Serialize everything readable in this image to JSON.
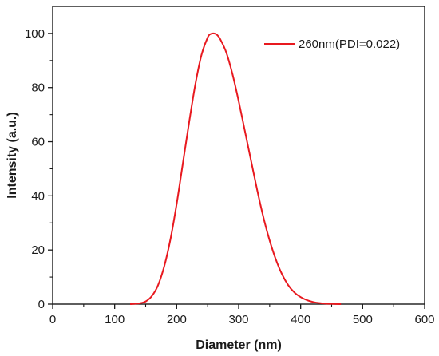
{
  "chart_data": {
    "type": "line",
    "title": "",
    "xlabel": "Diameter (nm)",
    "ylabel": "Intensity (a.u.)",
    "xlim": [
      0,
      600
    ],
    "ylim": [
      0,
      110
    ],
    "x_ticks": [
      0,
      100,
      200,
      300,
      400,
      500,
      600
    ],
    "y_ticks": [
      0,
      20,
      40,
      60,
      80,
      100
    ],
    "x_tick_labels": [
      "0",
      "100",
      "200",
      "300",
      "400",
      "500",
      "600"
    ],
    "y_tick_labels": [
      "0",
      "20",
      "40",
      "60",
      "80",
      "100"
    ],
    "grid": false,
    "legend_position": "top-right",
    "series": [
      {
        "name": "260nm(PDI=0.022)",
        "color": "#e8191f",
        "x": [
          125,
          140,
          150,
          160,
          170,
          180,
          190,
          200,
          210,
          220,
          230,
          240,
          250,
          255,
          260,
          265,
          270,
          280,
          290,
          300,
          310,
          320,
          330,
          340,
          350,
          360,
          370,
          380,
          390,
          400,
          410,
          420,
          430,
          440,
          450,
          465
        ],
        "y": [
          0,
          0.3,
          1,
          3,
          7,
          14,
          24,
          37,
          52,
          67,
          81,
          92,
          98.5,
          99.8,
          100,
          99.5,
          98,
          93,
          85,
          75,
          64,
          53,
          42,
          32,
          23.5,
          16.5,
          11,
          7,
          4.3,
          2.6,
          1.5,
          0.8,
          0.4,
          0.2,
          0.1,
          0
        ]
      }
    ]
  }
}
